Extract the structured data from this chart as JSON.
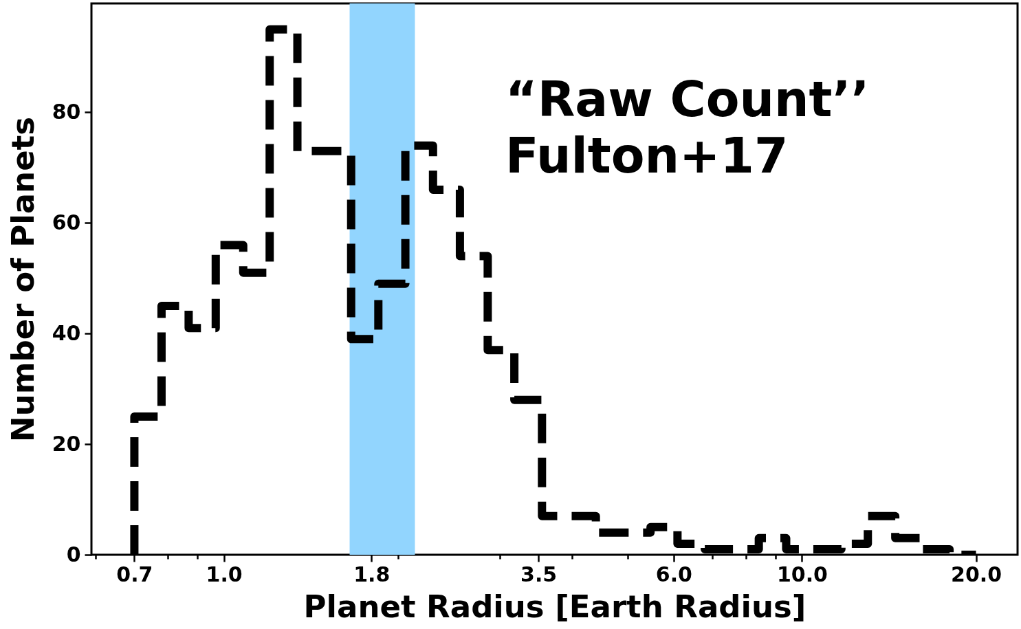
{
  "chart_data": {
    "type": "histogram",
    "xlabel": "Planet Radius [Earth Radius]",
    "ylabel": "Number of Planets",
    "annotations": [
      "“Raw Count’’",
      "Fulton+17"
    ],
    "bins": [
      0.7,
      0.78,
      0.869,
      0.968,
      1.08,
      1.2,
      1.34,
      1.49,
      1.66,
      1.85,
      2.06,
      2.3,
      2.56,
      2.86,
      3.18,
      3.55,
      3.95,
      4.4,
      4.9,
      5.47,
      6.09,
      6.79,
      7.56,
      8.42,
      9.39,
      10.5,
      11.7,
      13,
      14.5,
      16.1,
      18,
      20
    ],
    "values": [
      25,
      45,
      41,
      56,
      51,
      95,
      73,
      73,
      39,
      49,
      74,
      66,
      54,
      37,
      28,
      7,
      7,
      4,
      4,
      5,
      2,
      1,
      1,
      3,
      1,
      1,
      2,
      7,
      3,
      1,
      0
    ],
    "color": "#000000",
    "line_style": "dashed",
    "log": "x",
    "grid": false,
    "xlim": [
      0.59,
      23.6
    ],
    "ylim": [
      0,
      99.7
    ],
    "xticks": [
      {
        "value": 0.6,
        "label": null
      },
      0.7,
      {
        "value": 0.8,
        "label": null
      },
      {
        "value": 0.9,
        "label": null
      },
      {
        "value": 1,
        "label": "1.0"
      },
      1.8,
      {
        "value": 2,
        "label": null
      },
      {
        "value": 3,
        "label": null
      },
      3.5,
      {
        "value": 4,
        "label": null
      },
      {
        "value": 5,
        "label": null
      },
      {
        "value": 6,
        "label": "6.0"
      },
      {
        "value": 7,
        "label": null
      },
      {
        "value": 8,
        "label": null
      },
      {
        "value": 9,
        "label": null
      },
      {
        "value": 10,
        "label": "10.0"
      },
      {
        "value": 20,
        "label": "20.0"
      }
    ],
    "yticks": [
      0,
      20,
      40,
      60,
      80
    ],
    "bands": [
      {
        "axis": "x",
        "from": 1.65,
        "to": 2.14,
        "color": "#92d5fe"
      }
    ]
  }
}
